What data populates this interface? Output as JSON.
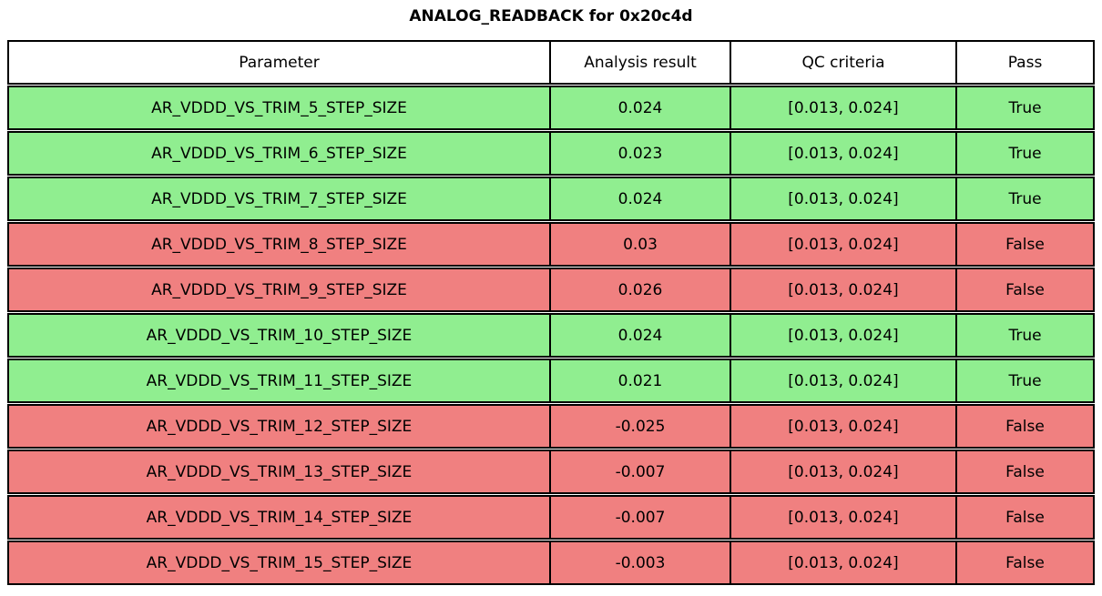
{
  "title": "ANALOG_READBACK for 0x20c4d",
  "colors": {
    "pass_row": "#90ee90",
    "fail_row": "#f08080",
    "header_bg": "#ffffff",
    "border": "#000000",
    "text": "#000000"
  },
  "chart_data": {
    "type": "table",
    "title": "ANALOG_READBACK for 0x20c4d",
    "columns": [
      "Parameter",
      "Analysis result",
      "QC criteria",
      "Pass"
    ],
    "rows": [
      {
        "parameter": "AR_VDDD_VS_TRIM_5_STEP_SIZE",
        "analysis_result": "0.024",
        "qc_criteria": "[0.013, 0.024]",
        "pass": "True"
      },
      {
        "parameter": "AR_VDDD_VS_TRIM_6_STEP_SIZE",
        "analysis_result": "0.023",
        "qc_criteria": "[0.013, 0.024]",
        "pass": "True"
      },
      {
        "parameter": "AR_VDDD_VS_TRIM_7_STEP_SIZE",
        "analysis_result": "0.024",
        "qc_criteria": "[0.013, 0.024]",
        "pass": "True"
      },
      {
        "parameter": "AR_VDDD_VS_TRIM_8_STEP_SIZE",
        "analysis_result": "0.03",
        "qc_criteria": "[0.013, 0.024]",
        "pass": "False"
      },
      {
        "parameter": "AR_VDDD_VS_TRIM_9_STEP_SIZE",
        "analysis_result": "0.026",
        "qc_criteria": "[0.013, 0.024]",
        "pass": "False"
      },
      {
        "parameter": "AR_VDDD_VS_TRIM_10_STEP_SIZE",
        "analysis_result": "0.024",
        "qc_criteria": "[0.013, 0.024]",
        "pass": "True"
      },
      {
        "parameter": "AR_VDDD_VS_TRIM_11_STEP_SIZE",
        "analysis_result": "0.021",
        "qc_criteria": "[0.013, 0.024]",
        "pass": "True"
      },
      {
        "parameter": "AR_VDDD_VS_TRIM_12_STEP_SIZE",
        "analysis_result": "-0.025",
        "qc_criteria": "[0.013, 0.024]",
        "pass": "False"
      },
      {
        "parameter": "AR_VDDD_VS_TRIM_13_STEP_SIZE",
        "analysis_result": "-0.007",
        "qc_criteria": "[0.013, 0.024]",
        "pass": "False"
      },
      {
        "parameter": "AR_VDDD_VS_TRIM_14_STEP_SIZE",
        "analysis_result": "-0.007",
        "qc_criteria": "[0.013, 0.024]",
        "pass": "False"
      },
      {
        "parameter": "AR_VDDD_VS_TRIM_15_STEP_SIZE",
        "analysis_result": "-0.003",
        "qc_criteria": "[0.013, 0.024]",
        "pass": "False"
      }
    ]
  }
}
